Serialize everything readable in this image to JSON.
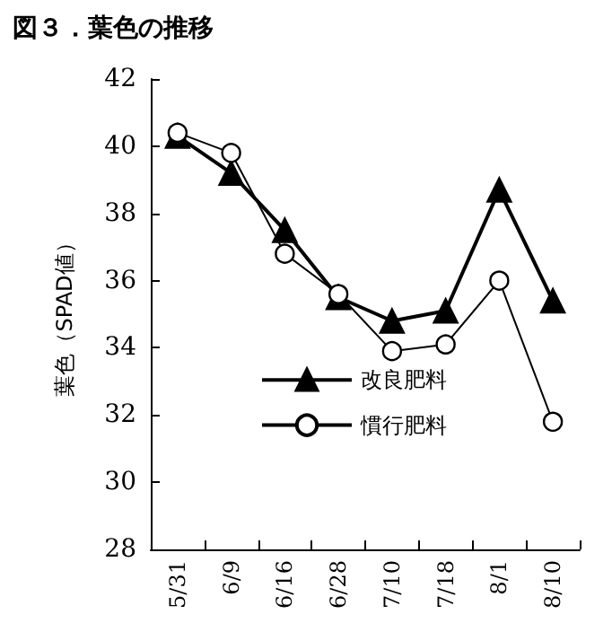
{
  "chart_data": {
    "type": "line",
    "title": "図３．葉色の推移",
    "ylabel": "葉色（SPAD値）",
    "categories": [
      "5/31",
      "6/9",
      "6/16",
      "6/28",
      "7/10",
      "7/18",
      "8/1",
      "8/10"
    ],
    "series": [
      {
        "name": "改良肥料",
        "color": "#000000",
        "marker": "triangle",
        "values": [
          40.3,
          39.2,
          37.5,
          35.5,
          34.8,
          35.1,
          38.7,
          35.4
        ]
      },
      {
        "name": "慣行肥料",
        "color": "#000000",
        "marker": "circle",
        "values": [
          40.4,
          39.8,
          36.8,
          35.6,
          33.9,
          34.1,
          36.0,
          31.8
        ]
      }
    ],
    "ylim": [
      28,
      42
    ],
    "yticks": [
      28,
      30,
      32,
      34,
      36,
      38,
      40,
      42
    ],
    "grid": false,
    "legend": "bottom",
    "line_style": "solid"
  }
}
